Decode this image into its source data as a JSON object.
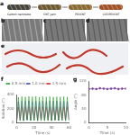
{
  "panel_labels": [
    "a",
    "b",
    "c",
    "d",
    "e",
    "f",
    "g"
  ],
  "schematic": [
    "Carbon nanotube",
    "CNT yarn",
    "PEI/CNT",
    "LCE/PEI/CNT"
  ],
  "chart_data": [
    {
      "type": "line",
      "x_label": "Time (s)",
      "y_label": "Rotation (°)",
      "x": [
        0,
        2,
        4,
        6,
        8,
        10,
        12,
        14,
        16,
        18,
        20,
        22,
        24,
        26,
        28,
        30,
        32,
        34,
        36,
        38,
        40,
        42,
        44,
        46,
        48,
        50,
        52,
        54,
        56,
        58,
        60
      ],
      "series": [
        {
          "name": "0.5 mm",
          "color": "#2ca02c",
          "values": [
            20,
            360,
            30,
            370,
            25,
            365,
            35,
            372,
            28,
            368,
            30,
            375,
            26,
            362,
            32,
            370,
            27,
            366,
            30,
            371,
            25,
            364,
            33,
            369,
            28,
            367,
            31,
            372,
            26,
            365,
            30
          ]
        },
        {
          "name": "1.0 mm",
          "color": "#3b4cc0",
          "values": [
            20,
            300,
            35,
            310,
            30,
            305,
            38,
            312,
            32,
            300,
            36,
            308,
            30,
            304,
            35,
            310,
            33,
            302,
            37,
            309,
            31,
            306,
            34,
            311,
            30,
            303,
            36,
            307,
            32,
            305,
            34
          ]
        },
        {
          "name": "1.5 mm",
          "color": "#d62728",
          "values": [
            20,
            220,
            40,
            228,
            38,
            225,
            42,
            230,
            40,
            222,
            44,
            226,
            39,
            224,
            41,
            229,
            40,
            221,
            43,
            227,
            38,
            225,
            42,
            228,
            40,
            223,
            41,
            226,
            39,
            224,
            42
          ]
        }
      ],
      "xlim": [
        0,
        60
      ],
      "xticks": [
        0,
        20,
        40,
        60
      ],
      "ylim": [
        0,
        400
      ],
      "yticks": [
        0,
        200,
        400
      ],
      "legend": "top"
    },
    {
      "type": "line",
      "x_label": "Time (s)",
      "y_label": "Angle (°)",
      "x": [
        0,
        1,
        2,
        3,
        4,
        5,
        6,
        7,
        8,
        9,
        10
      ],
      "series": [
        {
          "name": "Angle",
          "color": "#7b3fa0",
          "marker": "circle",
          "values": [
            97,
            98,
            97,
            99,
            98,
            97,
            98,
            99,
            97,
            98,
            98
          ]
        }
      ],
      "xlim": [
        0,
        10
      ],
      "xticks": [
        0,
        5,
        10
      ],
      "ylim": [
        0,
        120
      ],
      "yticks": [
        0,
        40,
        80,
        120
      ]
    }
  ]
}
